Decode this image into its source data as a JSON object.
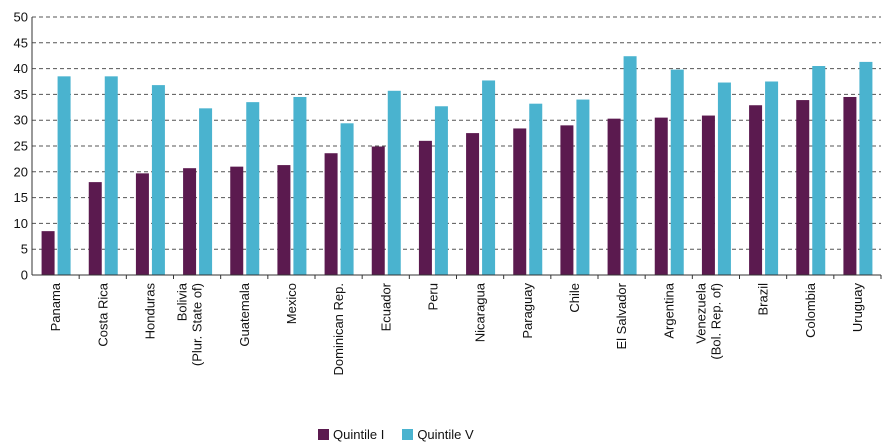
{
  "chart_data": {
    "type": "bar",
    "categories": [
      [
        "Panama"
      ],
      [
        "Costa Rica"
      ],
      [
        "Honduras"
      ],
      [
        "Bolivia",
        "(Plur. State of)"
      ],
      [
        "Guatemala"
      ],
      [
        "Mexico"
      ],
      [
        "Dominican Rep."
      ],
      [
        "Ecuador"
      ],
      [
        "Peru"
      ],
      [
        "Nicaragua"
      ],
      [
        "Paraguay"
      ],
      [
        "Chile"
      ],
      [
        "El Salvador"
      ],
      [
        "Argentina"
      ],
      [
        "Venezuela",
        "(Bol. Rep. of)"
      ],
      [
        "Brazil"
      ],
      [
        "Colombia"
      ],
      [
        "Uruguay"
      ]
    ],
    "series": [
      {
        "name": "Quintile I",
        "color": "#5b1a4f",
        "values": [
          8.5,
          18,
          19.7,
          20.7,
          21,
          21.3,
          23.6,
          24.9,
          26,
          27.5,
          28.4,
          29,
          30.3,
          30.5,
          30.9,
          32.9,
          33.9,
          34.5
        ]
      },
      {
        "name": "Quintile V",
        "color": "#4ab3cf",
        "values": [
          38.5,
          38.5,
          36.8,
          32.3,
          33.5,
          34.5,
          29.4,
          35.7,
          32.7,
          37.7,
          33.2,
          34,
          42.4,
          39.8,
          37.3,
          37.5,
          40.5,
          41.3
        ]
      }
    ],
    "ylim": [
      0,
      50
    ],
    "yticks": [
      0,
      5,
      10,
      15,
      20,
      25,
      30,
      35,
      40,
      45,
      50
    ],
    "grid": true,
    "legend_position": "bottom"
  }
}
